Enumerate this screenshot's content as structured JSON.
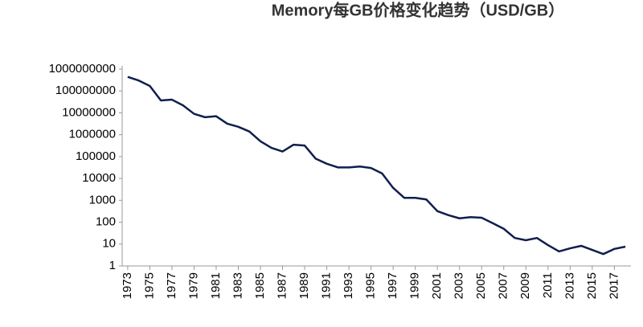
{
  "chart_data": {
    "type": "line",
    "title": "Memory每GB价格变化趋势（USD/GB）",
    "x": [
      1973,
      1974,
      1975,
      1976,
      1977,
      1978,
      1979,
      1980,
      1981,
      1982,
      1983,
      1984,
      1985,
      1986,
      1987,
      1988,
      1989,
      1990,
      1991,
      1992,
      1993,
      1994,
      1995,
      1996,
      1997,
      1998,
      1999,
      2000,
      2001,
      2002,
      2003,
      2004,
      2005,
      2006,
      2007,
      2008,
      2009,
      2010,
      2011,
      2012,
      2013,
      2014,
      2015,
      2016,
      2017,
      2018
    ],
    "series": [
      {
        "color": "#0f1f4d",
        "values": [
          440000000,
          300000000,
          170000000,
          37000000,
          40000000,
          22000000,
          9000000,
          6300000,
          7000000,
          3200000,
          2300000,
          1400000,
          500000,
          250000,
          170000,
          350000,
          320000,
          80000,
          47000,
          32000,
          32000,
          35000,
          30000,
          17000,
          3700,
          1300,
          1300,
          1100,
          320,
          210,
          150,
          170,
          160,
          90,
          50,
          19,
          15,
          19,
          9,
          4.6,
          6.4,
          8.3,
          5.4,
          3.5,
          6,
          7.6
        ]
      }
    ],
    "xlim": [
      1972.5,
      2018.5
    ],
    "xticks": [
      1973,
      1975,
      1977,
      1979,
      1981,
      1983,
      1985,
      1987,
      1989,
      1991,
      1993,
      1995,
      1997,
      1999,
      2001,
      2003,
      2005,
      2007,
      2009,
      2011,
      2013,
      2015,
      2017
    ],
    "ylim": [
      1,
      1000000000
    ],
    "yticks": [
      1,
      10,
      100,
      1000,
      10000,
      100000,
      1000000,
      10000000,
      100000000,
      1000000000
    ],
    "log_y": true,
    "grid": false
  }
}
